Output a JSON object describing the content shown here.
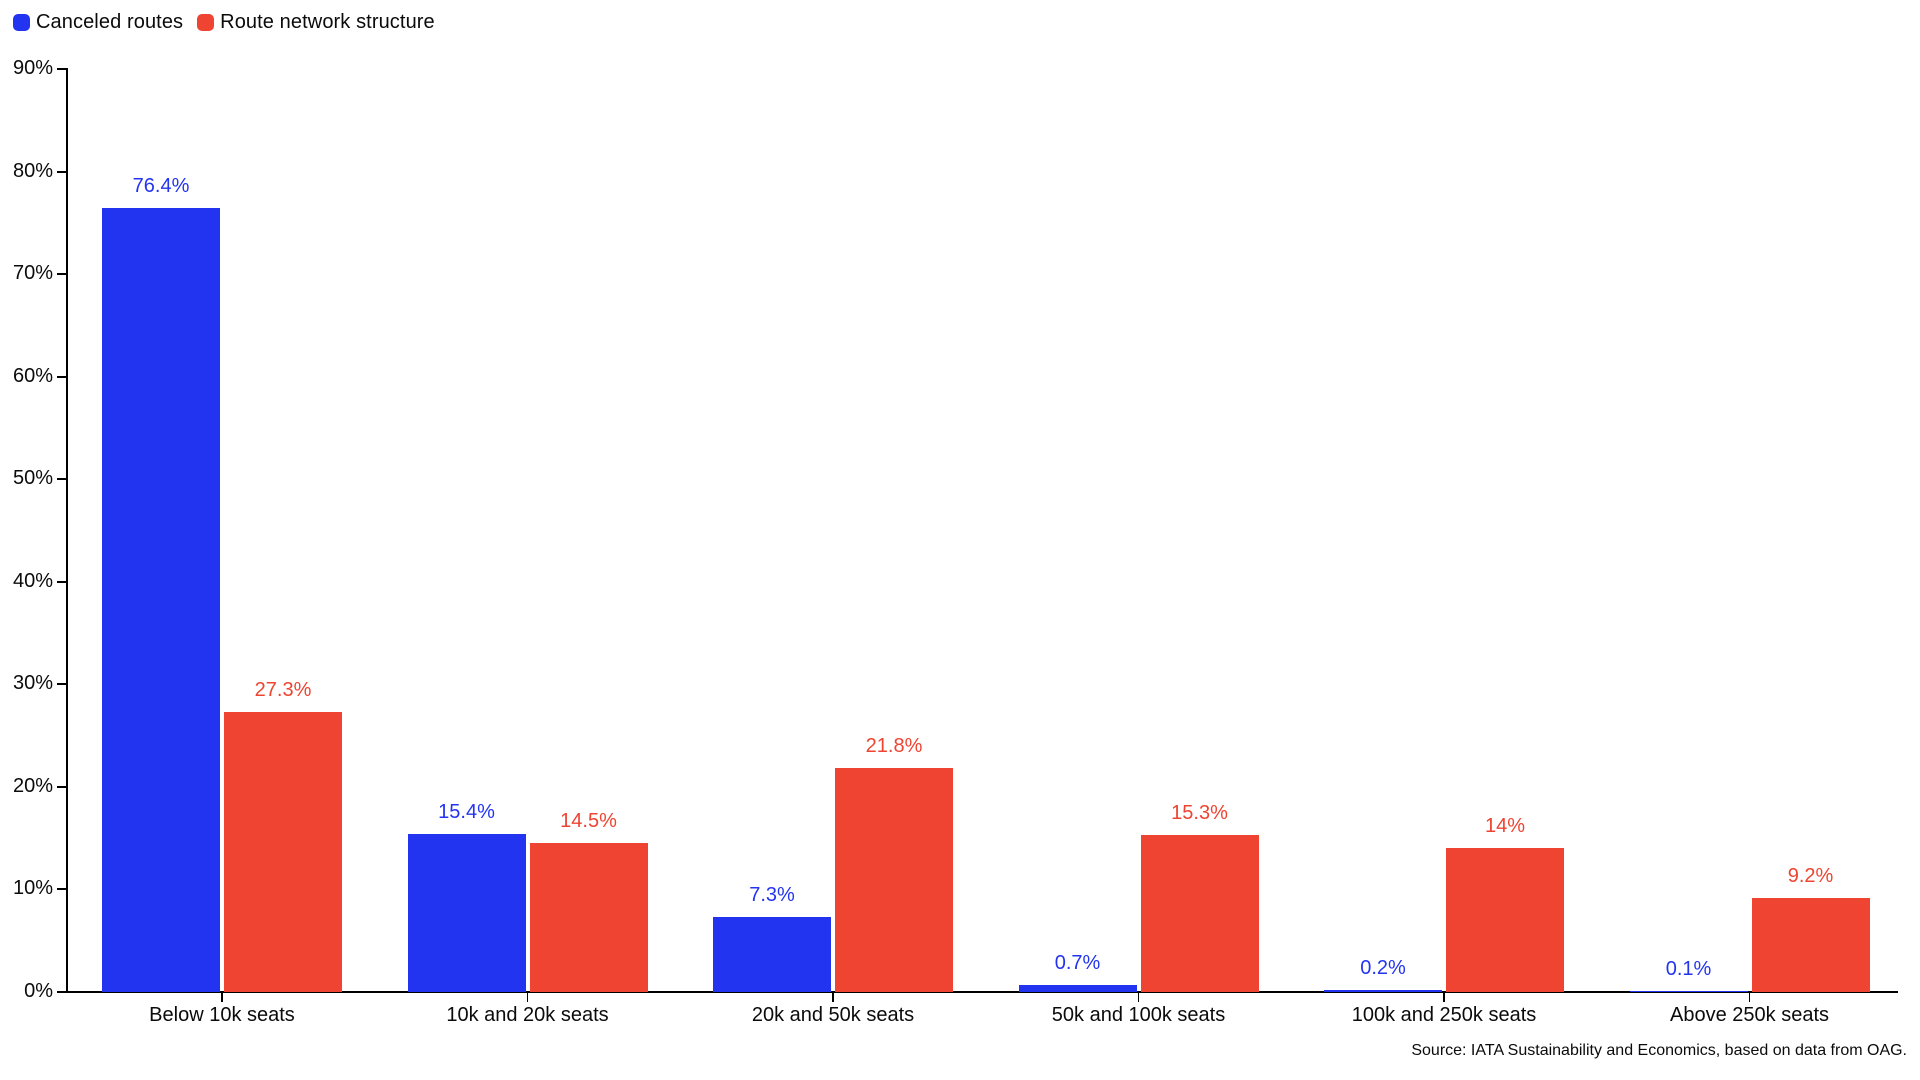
{
  "legend": {
    "items": [
      {
        "label": "Canceled routes",
        "color": "#2334f1"
      },
      {
        "label": "Route network structure",
        "color": "#ee4431"
      }
    ]
  },
  "source": "Source: IATA Sustainability and Economics, based on data from OAG.",
  "chart_data": {
    "type": "bar",
    "categories": [
      "Below 10k seats",
      "10k and 20k seats",
      "20k and 50k seats",
      "50k and 100k seats",
      "100k and 250k seats",
      "Above 250k seats"
    ],
    "series": [
      {
        "name": "Canceled routes",
        "color": "#2334f1",
        "values": [
          76.4,
          15.4,
          7.3,
          0.7,
          0.2,
          0.1
        ],
        "labels": [
          "76.4%",
          "15.4%",
          "7.3%",
          "0.7%",
          "0.2%",
          "0.1%"
        ]
      },
      {
        "name": "Route network structure",
        "color": "#ee4431",
        "values": [
          27.3,
          14.5,
          21.8,
          15.3,
          14,
          9.2
        ],
        "labels": [
          "27.3%",
          "14.5%",
          "21.8%",
          "15.3%",
          "14%",
          "9.2%"
        ]
      }
    ],
    "ylim": [
      0,
      90
    ],
    "ytick_step": 10,
    "ytick_suffix": "%",
    "grid": false,
    "legend_position": "top-left"
  }
}
